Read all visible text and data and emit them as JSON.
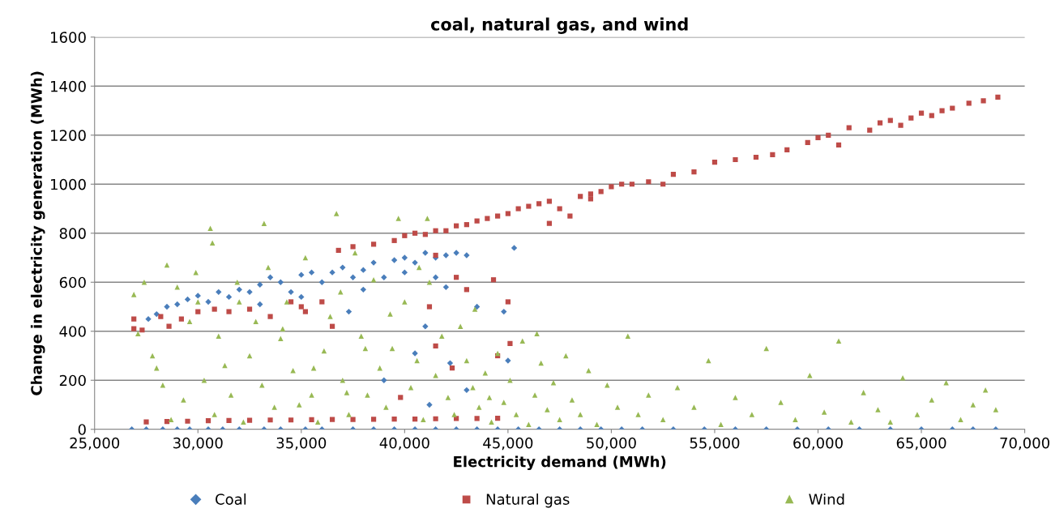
{
  "chart_data": {
    "type": "scatter",
    "title": "coal, natural gas, and wind",
    "xlabel": "Electricity demand (MWh)",
    "ylabel": "Change in electricity generation (MWh)",
    "xlim": [
      25000,
      70000
    ],
    "xticks": [
      {
        "value": 25000,
        "label": "25,000"
      },
      {
        "value": 30000,
        "label": "30,000"
      },
      {
        "value": 35000,
        "label": "35,000"
      },
      {
        "value": 40000,
        "label": "40,000"
      },
      {
        "value": 45000,
        "label": "45,000"
      },
      {
        "value": 50000,
        "label": "50,000"
      },
      {
        "value": 55000,
        "label": "55,000"
      },
      {
        "value": 60000,
        "label": "60,000"
      },
      {
        "value": 65000,
        "label": "65,000"
      },
      {
        "value": 70000,
        "label": "70,000"
      }
    ],
    "ylim": [
      0,
      1600
    ],
    "yticks": [
      0,
      200,
      400,
      600,
      800,
      1000,
      1200,
      1400,
      1600
    ],
    "grid": "y",
    "legend": "bottom",
    "series": [
      {
        "name": "Coal",
        "color": "#4a7ebb",
        "marker": "diamond",
        "x": [
          26800,
          27500,
          28300,
          29000,
          29600,
          30500,
          31200,
          32000,
          33200,
          34000,
          35200,
          36000,
          37500,
          38500,
          39500,
          40500,
          41500,
          42500,
          43500,
          44500,
          45500,
          46500,
          47500,
          48500,
          49500,
          50500,
          51500,
          53000,
          54500,
          56000,
          57500,
          59000,
          60500,
          62000,
          63500,
          65000,
          66500,
          67500,
          68600,
          27600,
          28000,
          28500,
          29000,
          29500,
          30000,
          30500,
          31000,
          31500,
          32000,
          32500,
          33000,
          33500,
          34000,
          34500,
          35000,
          35500,
          36000,
          36500,
          37000,
          37500,
          37300,
          38000,
          38500,
          39000,
          39500,
          40000,
          40500,
          41000,
          41500,
          42000,
          42500,
          43000,
          45300,
          33000,
          35000,
          38000,
          40000,
          41500,
          42000,
          43500,
          44800,
          41000,
          39000,
          40500,
          42200,
          45000,
          43000,
          41200
        ],
        "values": [
          0,
          0,
          0,
          0,
          0,
          0,
          0,
          0,
          0,
          0,
          0,
          0,
          0,
          0,
          0,
          0,
          0,
          0,
          0,
          0,
          0,
          0,
          0,
          0,
          0,
          0,
          0,
          0,
          0,
          0,
          0,
          0,
          0,
          0,
          0,
          0,
          0,
          0,
          0,
          450,
          470,
          500,
          510,
          530,
          545,
          520,
          560,
          540,
          570,
          560,
          590,
          620,
          600,
          560,
          630,
          640,
          600,
          640,
          660,
          620,
          480,
          650,
          680,
          620,
          690,
          700,
          680,
          720,
          700,
          710,
          720,
          710,
          740,
          510,
          540,
          570,
          640,
          620,
          580,
          500,
          480,
          420,
          200,
          310,
          270,
          280,
          160,
          100
        ]
      },
      {
        "name": "Natural gas",
        "color": "#be4b48",
        "marker": "square",
        "x": [
          27500,
          28500,
          29500,
          30500,
          31500,
          32500,
          33500,
          34500,
          35500,
          36500,
          37500,
          38500,
          39500,
          40500,
          41500,
          42500,
          43500,
          44500,
          26900,
          26900,
          27300,
          28200,
          28600,
          29200,
          30000,
          30800,
          31500,
          32500,
          33500,
          34500,
          35000,
          36000,
          36800,
          36500,
          35200,
          37500,
          38500,
          39500,
          40000,
          40500,
          41000,
          41500,
          42000,
          42500,
          43000,
          43500,
          44000,
          44500,
          45000,
          45500,
          46000,
          46500,
          47000,
          47500,
          48000,
          48500,
          49000,
          49500,
          50000,
          50500,
          51000,
          51800,
          52500,
          53000,
          54000,
          55000,
          56000,
          57000,
          57800,
          58500,
          59500,
          60000,
          60500,
          61000,
          61500,
          62500,
          63000,
          63500,
          64000,
          64500,
          65000,
          65500,
          66000,
          66500,
          67300,
          68000,
          68700,
          47000,
          49000,
          41500,
          42500,
          43000,
          44300,
          41200,
          45000,
          45100,
          44500,
          41500,
          42300,
          39800
        ],
        "values": [
          30,
          32,
          33,
          35,
          36,
          37,
          38,
          38,
          39,
          40,
          40,
          41,
          42,
          42,
          43,
          44,
          44,
          45,
          410,
          450,
          405,
          460,
          420,
          450,
          480,
          490,
          480,
          490,
          460,
          520,
          500,
          520,
          730,
          420,
          480,
          745,
          755,
          770,
          790,
          800,
          795,
          810,
          810,
          830,
          835,
          850,
          860,
          870,
          880,
          900,
          910,
          920,
          930,
          900,
          870,
          950,
          960,
          970,
          990,
          1000,
          1000,
          1010,
          1000,
          1040,
          1050,
          1090,
          1100,
          1110,
          1120,
          1140,
          1170,
          1190,
          1200,
          1160,
          1230,
          1220,
          1250,
          1260,
          1240,
          1270,
          1290,
          1280,
          1300,
          1310,
          1330,
          1340,
          1355,
          840,
          940,
          710,
          620,
          570,
          610,
          500,
          520,
          350,
          300,
          340,
          250,
          130
        ]
      },
      {
        "name": "Wind",
        "color": "#98b954",
        "marker": "triangle",
        "x": [
          26900,
          27100,
          27400,
          27800,
          28000,
          28300,
          28500,
          28700,
          29000,
          29300,
          29600,
          30000,
          30300,
          30600,
          30800,
          31000,
          31300,
          31600,
          31900,
          32200,
          32500,
          32800,
          33100,
          33400,
          33700,
          34000,
          34300,
          34600,
          34900,
          35200,
          35500,
          35800,
          36100,
          36400,
          36700,
          37000,
          37300,
          37600,
          37900,
          38200,
          38500,
          38800,
          39100,
          39400,
          39700,
          40000,
          40300,
          40600,
          40900,
          41200,
          41500,
          41800,
          42100,
          42400,
          42700,
          43000,
          43300,
          43600,
          43900,
          44200,
          44500,
          44800,
          45100,
          45400,
          45700,
          46000,
          46300,
          46600,
          46900,
          47200,
          47500,
          47800,
          48100,
          48500,
          48900,
          49300,
          49800,
          50300,
          50800,
          51300,
          51800,
          52500,
          53200,
          54000,
          54700,
          55300,
          56000,
          56800,
          57500,
          58200,
          58900,
          59600,
          60300,
          61000,
          61600,
          62200,
          62900,
          63500,
          64100,
          64800,
          65500,
          66200,
          66900,
          67500,
          68100,
          68600,
          30700,
          33200,
          36900,
          39300,
          40700,
          35600,
          38100,
          29900,
          32000,
          34100,
          37200,
          41100,
          43400,
          46400,
          44100
        ],
        "values": [
          550,
          390,
          600,
          300,
          250,
          180,
          670,
          40,
          580,
          120,
          440,
          520,
          200,
          820,
          60,
          380,
          260,
          140,
          600,
          30,
          300,
          440,
          180,
          660,
          90,
          370,
          520,
          240,
          100,
          700,
          140,
          30,
          320,
          460,
          880,
          200,
          60,
          720,
          380,
          140,
          610,
          250,
          90,
          330,
          860,
          520,
          170,
          280,
          40,
          600,
          220,
          380,
          130,
          60,
          420,
          280,
          170,
          90,
          230,
          30,
          310,
          110,
          200,
          60,
          360,
          20,
          140,
          270,
          80,
          190,
          40,
          300,
          120,
          60,
          240,
          20,
          180,
          90,
          380,
          60,
          140,
          40,
          170,
          90,
          280,
          20,
          130,
          60,
          330,
          110,
          40,
          220,
          70,
          360,
          30,
          150,
          80,
          30,
          210,
          60,
          120,
          190,
          40,
          100,
          160,
          80,
          760,
          840,
          560,
          470,
          660,
          250,
          330,
          640,
          520,
          410,
          150,
          860,
          490,
          390,
          130
        ]
      }
    ]
  }
}
